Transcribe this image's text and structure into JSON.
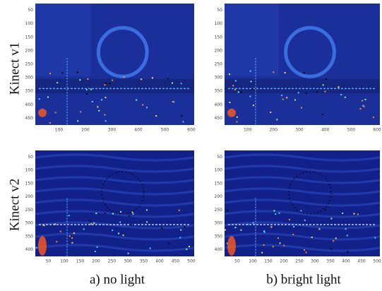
{
  "rows": [
    {
      "label": "Kinect v1",
      "yticks": [
        "50",
        "100",
        "150",
        "200",
        "250",
        "300",
        "350",
        "400",
        "450"
      ],
      "xticks": [
        "100",
        "200",
        "300",
        "400",
        "500",
        "600"
      ]
    },
    {
      "label": "Kinect v2",
      "yticks": [
        "50",
        "100",
        "150",
        "200",
        "250",
        "300",
        "350",
        "400"
      ],
      "xticks": [
        "50",
        "100",
        "150",
        "200",
        "250",
        "300",
        "350",
        "400",
        "450",
        "500"
      ]
    }
  ],
  "columns": [
    {
      "caption": "a) no light"
    },
    {
      "caption": "b) bright light"
    }
  ]
}
